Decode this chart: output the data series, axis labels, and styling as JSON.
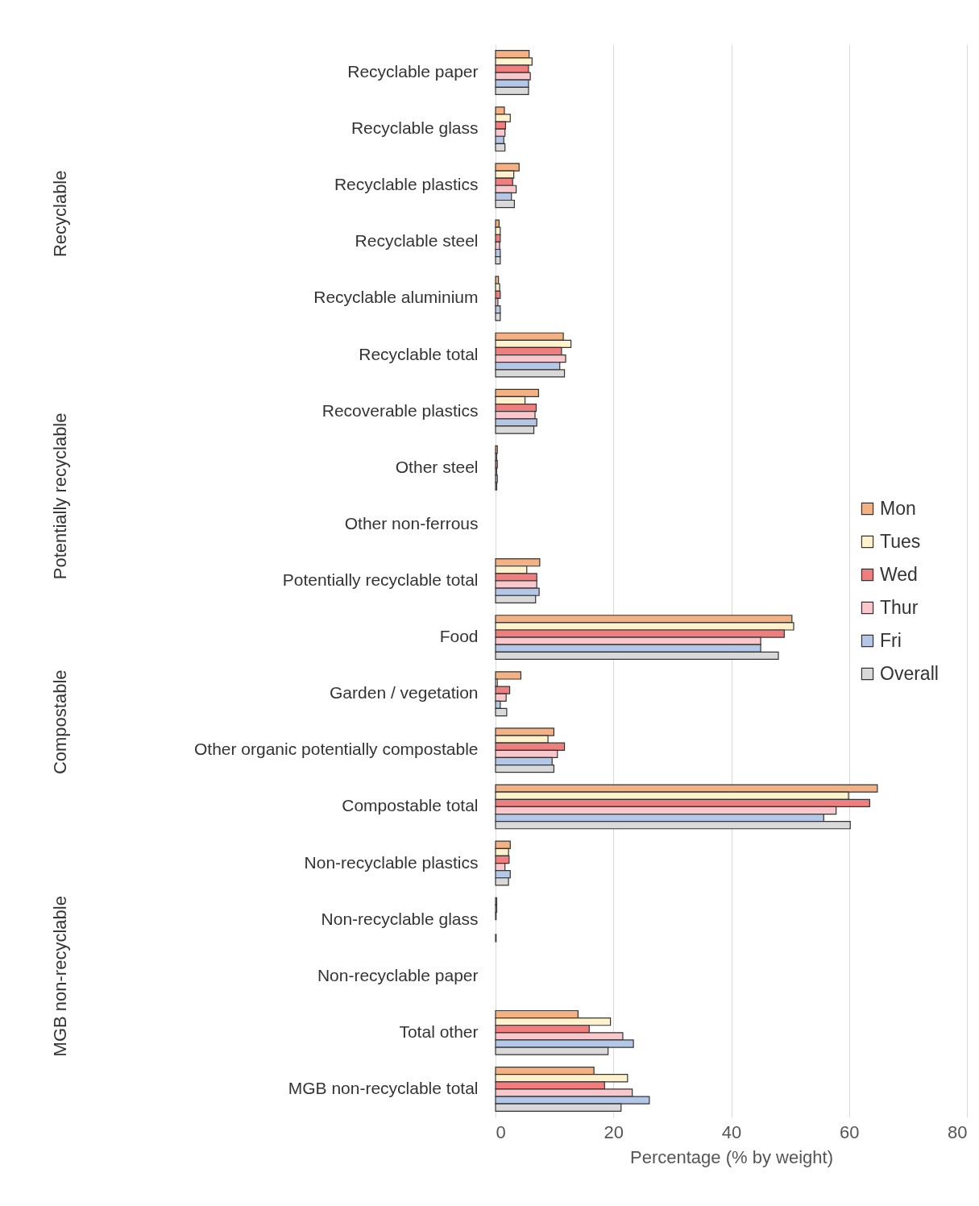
{
  "chart_data": {
    "type": "bar",
    "orientation": "horizontal",
    "categories": [
      "Recyclable paper",
      "Recyclable glass",
      "Recyclable plastics",
      "Recyclable steel",
      "Recyclable aluminium",
      "Recyclable total",
      "Recoverable plastics",
      "Other steel",
      "Other non-ferrous",
      "Potentially recyclable total",
      "Food",
      "Garden / vegetation",
      "Other organic potentially compostable",
      "Compostable total",
      "Non-recyclable plastics",
      "Non-recyclable glass",
      "Non-recyclable paper",
      "Total other",
      "MGB non-recyclable total"
    ],
    "series": [
      {
        "name": "Mon",
        "color": "#f4b183",
        "values": [
          5.7,
          1.5,
          4.0,
          0.6,
          0.5,
          11.5,
          7.3,
          0.3,
          null,
          7.5,
          50.3,
          4.3,
          9.9,
          64.8,
          2.5,
          0.2,
          null,
          14.0,
          16.7
        ]
      },
      {
        "name": "Tues",
        "color": "#fff2cc",
        "values": [
          6.2,
          2.5,
          3.1,
          0.8,
          0.7,
          12.8,
          5.0,
          0.2,
          null,
          5.3,
          50.6,
          0.3,
          8.9,
          59.9,
          2.2,
          0.2,
          null,
          19.5,
          22.4
        ]
      },
      {
        "name": "Wed",
        "color": "#ef7f7f",
        "values": [
          5.6,
          1.7,
          2.9,
          0.8,
          0.8,
          11.2,
          6.9,
          0.3,
          null,
          7.0,
          49.0,
          2.4,
          11.7,
          63.5,
          2.3,
          0.1,
          null,
          15.9,
          18.5
        ]
      },
      {
        "name": "Thur",
        "color": "#f8c8cc",
        "values": [
          5.9,
          1.6,
          3.5,
          0.7,
          0.4,
          11.9,
          6.7,
          0.2,
          null,
          7.0,
          45.0,
          1.8,
          10.5,
          57.8,
          1.6,
          null,
          null,
          21.6,
          23.2
        ]
      },
      {
        "name": "Fri",
        "color": "#b4c7e7",
        "values": [
          5.6,
          1.4,
          2.7,
          0.8,
          0.8,
          10.9,
          7.0,
          0.3,
          null,
          7.4,
          45.0,
          0.8,
          9.6,
          55.7,
          2.5,
          null,
          null,
          23.4,
          26.1
        ]
      },
      {
        "name": "Overall",
        "color": "#d9d9d9",
        "values": [
          5.6,
          1.6,
          3.2,
          0.8,
          0.8,
          11.7,
          6.5,
          0.2,
          null,
          6.8,
          48.0,
          1.9,
          9.9,
          60.2,
          2.2,
          0.1,
          null,
          19.1,
          21.3
        ]
      }
    ],
    "xlabel": "Percentage (% by weight)",
    "xlim": [
      0,
      80
    ],
    "xticks": [
      0,
      20,
      40,
      60,
      80
    ],
    "grid": "x",
    "legend": "right",
    "annotations": [
      "Recyclable",
      "Potentially recyclable",
      "Compostable",
      "MGB non-recyclable"
    ]
  }
}
